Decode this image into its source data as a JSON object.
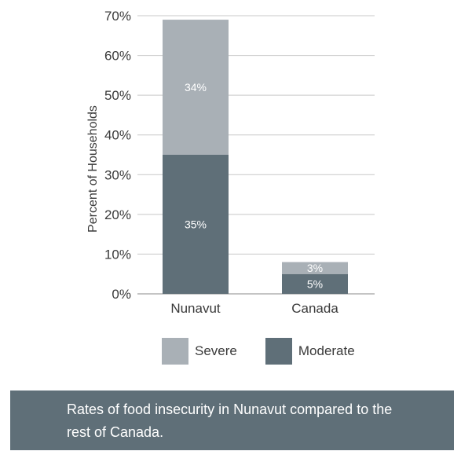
{
  "chart_data": {
    "type": "bar",
    "stacked": true,
    "categories": [
      "Nunavut",
      "Canada"
    ],
    "series": [
      {
        "name": "Moderate",
        "values": [
          35,
          5
        ],
        "labels": [
          "35%",
          "5%"
        ],
        "color": "#5f6f78"
      },
      {
        "name": "Severe",
        "values": [
          34,
          3
        ],
        "labels": [
          "34%",
          "3%"
        ],
        "color": "#a9b0b6"
      }
    ],
    "ylabel": "Percent of Households",
    "ylim": [
      0,
      70
    ],
    "yticks": [
      0,
      10,
      20,
      30,
      40,
      50,
      60,
      70
    ],
    "ytick_labels": [
      "0%",
      "10%",
      "20%",
      "30%",
      "40%",
      "50%",
      "60%",
      "70%"
    ],
    "grid": true,
    "legend_position": "bottom"
  },
  "legend": {
    "severe_label": "Severe",
    "moderate_label": "Moderate",
    "severe_color": "#a9b0b6",
    "moderate_color": "#5f6f78"
  },
  "caption": {
    "text": "Rates of food insecurity in Nunavut compared to the rest of Canada."
  }
}
